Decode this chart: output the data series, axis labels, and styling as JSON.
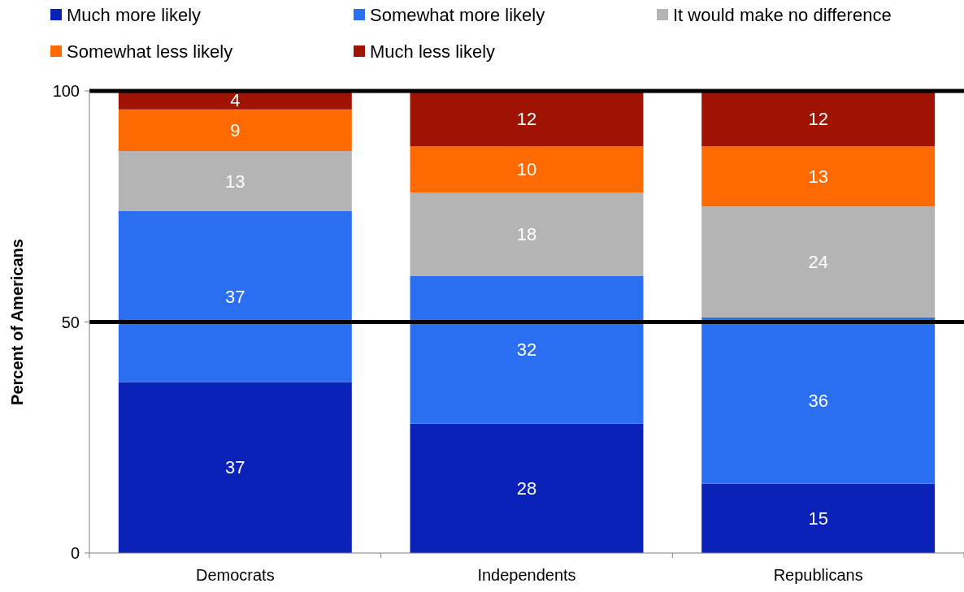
{
  "chart_data": {
    "type": "bar",
    "stacked": true,
    "ylabel": "Percent of Americans",
    "categories": [
      "Democrats",
      "Independents",
      "Republicans"
    ],
    "series": [
      {
        "name": "Much more likely",
        "color": "#0a22b8",
        "values": [
          37,
          28,
          15
        ]
      },
      {
        "name": "Somewhat more likely",
        "color": "#2a6ef2",
        "values": [
          37,
          32,
          36
        ]
      },
      {
        "name": "It would make no difference",
        "color": "#b4b4b4",
        "values": [
          13,
          18,
          24
        ]
      },
      {
        "name": "Somewhat less likely",
        "color": "#ff6a00",
        "values": [
          9,
          10,
          13
        ]
      },
      {
        "name": "Much less likely",
        "color": "#a01202",
        "values": [
          4,
          12,
          12
        ]
      }
    ],
    "ylim": [
      0,
      100
    ],
    "yticks": [
      0,
      50,
      100
    ],
    "grid": "y",
    "legend": "top",
    "data_labels": true
  }
}
